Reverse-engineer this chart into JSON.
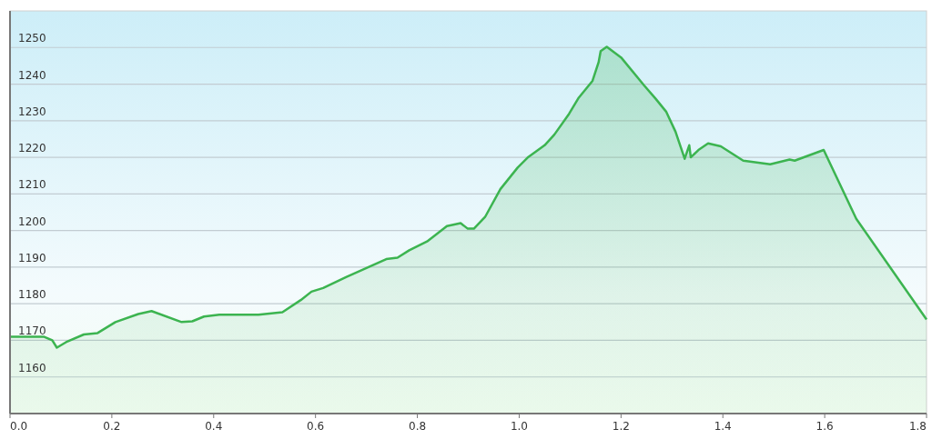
{
  "chart_data": {
    "type": "area",
    "xlim": [
      0,
      1.8
    ],
    "ylim": [
      1150,
      1260
    ],
    "xticks": [
      {
        "value": 0,
        "label": "0.0"
      },
      {
        "value": 0.2,
        "label": "0.2"
      },
      {
        "value": 0.4,
        "label": "0.4"
      },
      {
        "value": 0.6,
        "label": "0.6"
      },
      {
        "value": 0.8,
        "label": "0.8"
      },
      {
        "value": 1,
        "label": "1.0"
      },
      {
        "value": 1.2,
        "label": "1.2"
      },
      {
        "value": 1.4,
        "label": "1.4"
      },
      {
        "value": 1.6,
        "label": "1.6"
      },
      {
        "value": 1.8,
        "label": "1.8"
      }
    ],
    "yticks": [
      1160,
      1170,
      1180,
      1190,
      1200,
      1210,
      1220,
      1230,
      1240,
      1250
    ],
    "grid": "y",
    "series": [
      {
        "color": "#3cb450",
        "x": [
          0,
          0.066,
          0.083,
          0.092,
          0.11,
          0.145,
          0.172,
          0.207,
          0.252,
          0.278,
          0.337,
          0.358,
          0.381,
          0.411,
          0.488,
          0.535,
          0.571,
          0.592,
          0.615,
          0.66,
          0.704,
          0.739,
          0.761,
          0.784,
          0.819,
          0.858,
          0.885,
          0.899,
          0.911,
          0.933,
          0.963,
          0.997,
          1.018,
          1.05,
          1.069,
          1.098,
          1.117,
          1.144,
          1.156,
          1.16,
          1.172,
          1.2,
          1.245,
          1.268,
          1.289,
          1.307,
          1.325,
          1.334,
          1.337,
          1.352,
          1.371,
          1.396,
          1.44,
          1.493,
          1.531,
          1.541,
          1.598,
          1.662,
          1.8
        ],
        "values": [
          1171,
          1171,
          1170,
          1168,
          1169.5,
          1171.6,
          1172,
          1175,
          1177.2,
          1178,
          1175,
          1175.2,
          1176.5,
          1177,
          1177,
          1177.7,
          1181,
          1183.3,
          1184.3,
          1187.3,
          1190,
          1192.2,
          1192.6,
          1194.6,
          1197,
          1201.2,
          1202,
          1200.5,
          1200.5,
          1203.7,
          1211.3,
          1217.2,
          1220.1,
          1223.3,
          1226.2,
          1231.9,
          1236.3,
          1240.9,
          1246,
          1249,
          1250.2,
          1247.3,
          1239.7,
          1236,
          1232.4,
          1227,
          1219.6,
          1223.3,
          1220,
          1222,
          1223.8,
          1223,
          1219.1,
          1218.1,
          1219.4,
          1219.1,
          1222,
          1203.2,
          1175.7
        ]
      }
    ]
  }
}
